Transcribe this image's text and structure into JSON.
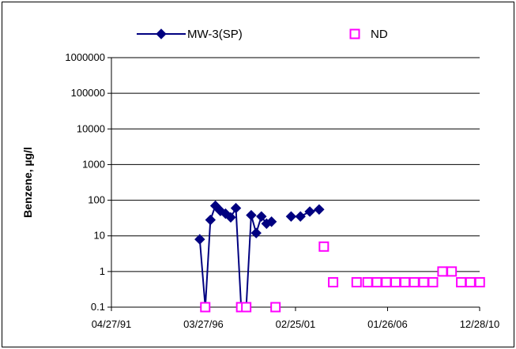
{
  "chart_data": {
    "type": "scatter",
    "title": "",
    "xlabel": "",
    "ylabel": "Benzene, µg/l",
    "y_scale": "log",
    "ylim": [
      0.1,
      1000000
    ],
    "y_ticks": [
      {
        "value": 0.1,
        "label": "0.1"
      },
      {
        "value": 1,
        "label": "1"
      },
      {
        "value": 10,
        "label": "10"
      },
      {
        "value": 100,
        "label": "100"
      },
      {
        "value": 1000,
        "label": "1000"
      },
      {
        "value": 10000,
        "label": "10000"
      },
      {
        "value": 100000,
        "label": "100000"
      },
      {
        "value": 1000000,
        "label": "1000000"
      }
    ],
    "xlim": [
      "1991-04-27",
      "2010-12-28"
    ],
    "x_ticks": [
      {
        "value": "1991-04-27",
        "label": "04/27/91"
      },
      {
        "value": "1996-03-27",
        "label": "03/27/96"
      },
      {
        "value": "2001-02-25",
        "label": "02/25/01"
      },
      {
        "value": "2006-01-26",
        "label": "01/26/06"
      },
      {
        "value": "2010-12-28",
        "label": "12/28/10"
      }
    ],
    "grid": "horizontal",
    "legend_position": "top",
    "series": [
      {
        "name": "MW-3(SP)",
        "style": "line-diamond",
        "color": "#000080",
        "points": [
          {
            "x": "1996-01-15",
            "y": 8
          },
          {
            "x": "1996-05-01",
            "y": 0.1
          },
          {
            "x": "1996-08-10",
            "y": 28
          },
          {
            "x": "1996-11-15",
            "y": 70
          },
          {
            "x": "1997-02-20",
            "y": 50
          },
          {
            "x": "1997-06-01",
            "y": 42
          },
          {
            "x": "1997-09-10",
            "y": 33
          },
          {
            "x": "1997-12-20",
            "y": 60
          },
          {
            "x": "1998-04-01",
            "y": 0.1
          },
          {
            "x": "1998-07-10",
            "y": 0.1
          },
          {
            "x": "1998-10-15",
            "y": 38
          },
          {
            "x": "1999-01-20",
            "y": 12
          },
          {
            "x": "1999-05-01",
            "y": 35
          },
          {
            "x": "1999-08-10",
            "y": 22
          },
          {
            "x": "1999-11-15",
            "y": 25
          }
        ]
      },
      {
        "name": "MW-3(SP)",
        "style": "line-diamond",
        "color": "#000080",
        "points": [
          {
            "x": "2000-12-01",
            "y": 35
          },
          {
            "x": "2001-06-01",
            "y": 35
          },
          {
            "x": "2001-12-01",
            "y": 48
          },
          {
            "x": "2002-06-01",
            "y": 55
          }
        ]
      },
      {
        "name": "ND",
        "style": "marker-square-open",
        "color": "#ff00ff",
        "points": [
          {
            "x": "1996-05-01",
            "y": 0.1
          },
          {
            "x": "1998-04-01",
            "y": 0.1
          },
          {
            "x": "1998-07-10",
            "y": 0.1
          },
          {
            "x": "2000-02-01",
            "y": 0.1
          },
          {
            "x": "2002-09-01",
            "y": 5
          },
          {
            "x": "2003-03-01",
            "y": 0.5
          },
          {
            "x": "2004-06-01",
            "y": 0.5
          },
          {
            "x": "2005-01-01",
            "y": 0.5
          },
          {
            "x": "2005-07-01",
            "y": 0.5
          },
          {
            "x": "2006-01-01",
            "y": 0.5
          },
          {
            "x": "2006-07-01",
            "y": 0.5
          },
          {
            "x": "2007-01-01",
            "y": 0.5
          },
          {
            "x": "2007-07-01",
            "y": 0.5
          },
          {
            "x": "2008-01-01",
            "y": 0.5
          },
          {
            "x": "2008-07-01",
            "y": 0.5
          },
          {
            "x": "2009-01-01",
            "y": 1
          },
          {
            "x": "2009-07-01",
            "y": 1
          },
          {
            "x": "2010-01-01",
            "y": 0.5
          },
          {
            "x": "2010-07-01",
            "y": 0.5
          },
          {
            "x": "2011-01-01",
            "y": 0.5
          }
        ]
      }
    ]
  }
}
